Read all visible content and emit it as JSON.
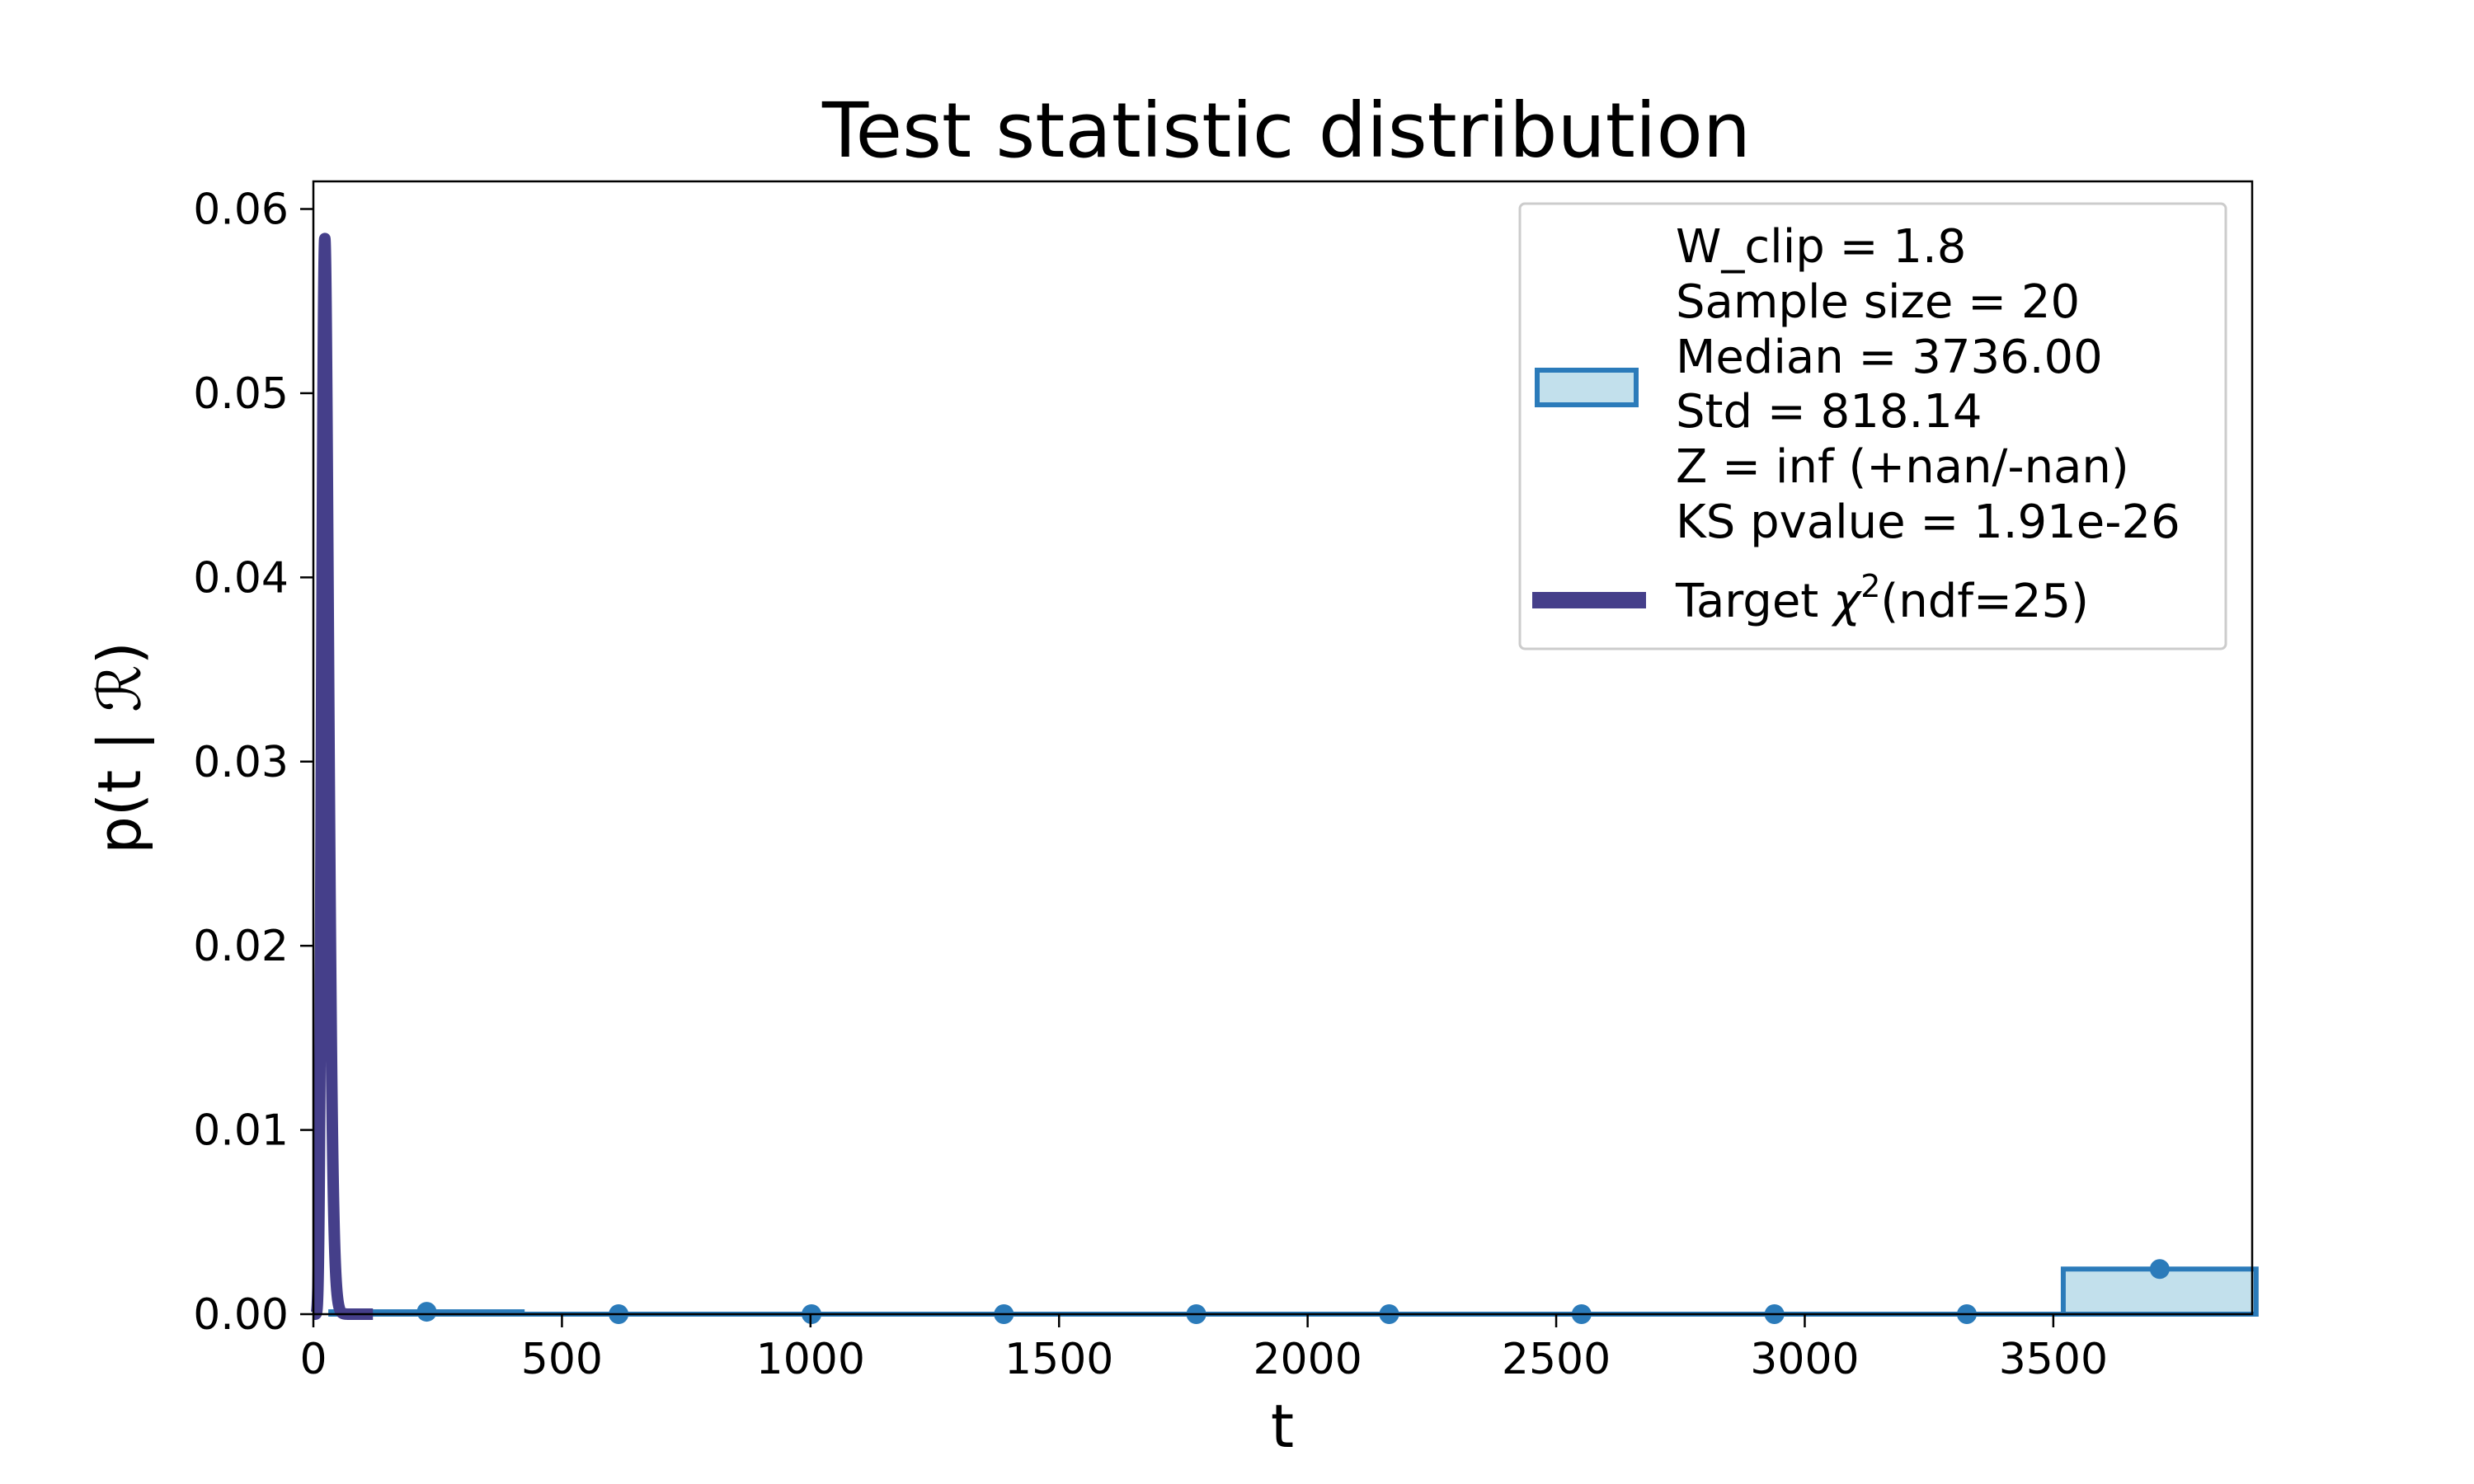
{
  "chart_data": {
    "type": "bar",
    "title": "Test statistic distribution",
    "xlabel": "t",
    "ylabel": "p(t | ℛ)",
    "xlim": [
      0,
      3900
    ],
    "ylim": [
      0,
      0.0615
    ],
    "xticks": [
      0,
      500,
      1000,
      1500,
      2000,
      2500,
      3000,
      3500
    ],
    "xtick_labels": [
      "0",
      "500",
      "1000",
      "1500",
      "2000",
      "2500",
      "3000",
      "3500"
    ],
    "yticks": [
      0,
      0.01,
      0.02,
      0.03,
      0.04,
      0.05,
      0.06
    ],
    "ytick_labels": [
      "0.00",
      "0.01",
      "0.02",
      "0.03",
      "0.04",
      "0.05",
      "0.06"
    ],
    "histogram": {
      "bin_edges": [
        35,
        420,
        808,
        1195,
        1583,
        1970,
        2358,
        2745,
        3133,
        3520,
        3908
      ],
      "bin_centers": [
        228,
        614,
        1002,
        1389,
        1776,
        2164,
        2551,
        2939,
        3326,
        3714
      ],
      "density": [
        0.00013,
        0,
        0,
        0,
        0,
        0,
        0,
        0,
        0,
        0.00245
      ],
      "fill_color": "#c2e0ec",
      "edge_color": "#2b7bba"
    },
    "target_curve": {
      "distribution": "chi2",
      "ndf": 25,
      "color": "#453f8a"
    },
    "grid": false,
    "legend_position": "top-right",
    "legend": {
      "histogram_lines": [
        "W_clip = 1.8",
        "Sample size = 20",
        "Median = 3736.00",
        "Std = 818.14",
        "Z = inf (+nan/-nan)",
        "KS pvalue = 1.91e-26"
      ],
      "target_prefix": "Target ",
      "target_symbol": "χ",
      "target_superscript": "2",
      "target_suffix": "(ndf=25)"
    }
  }
}
